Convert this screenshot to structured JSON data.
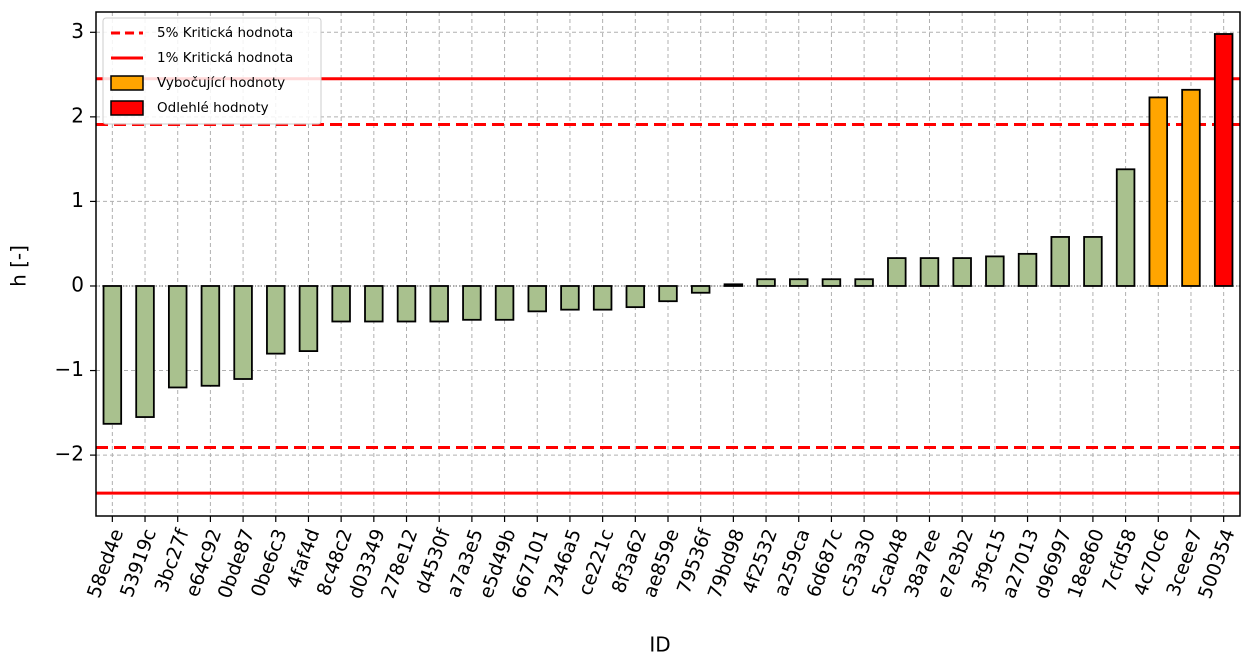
{
  "chart_data": {
    "type": "bar",
    "x_label": "ID",
    "y_label": "h [-]",
    "categories": [
      "58ed4e",
      "53919c",
      "3bc27f",
      "e64c92",
      "0bde87",
      "0be6c3",
      "4faf4d",
      "8c48c2",
      "d03349",
      "278e12",
      "d4530f",
      "a7a3e5",
      "e5d49b",
      "667101",
      "7346a5",
      "ce221c",
      "8f3a62",
      "ae859e",
      "79536f",
      "79bd98",
      "4f2532",
      "a259ca",
      "6d687c",
      "c53a30",
      "5cab48",
      "38a7ee",
      "e7e3b2",
      "3f9c15",
      "a27013",
      "d96997",
      "18e860",
      "7cfd58",
      "4c70c6",
      "3ceee7",
      "500354"
    ],
    "values": [
      -1.63,
      -1.55,
      -1.2,
      -1.18,
      -1.1,
      -0.8,
      -0.77,
      -0.42,
      -0.42,
      -0.42,
      -0.42,
      -0.4,
      -0.4,
      -0.3,
      -0.28,
      -0.28,
      -0.25,
      -0.18,
      -0.08,
      0.02,
      0.08,
      0.08,
      0.08,
      0.08,
      0.33,
      0.33,
      0.33,
      0.35,
      0.38,
      0.58,
      0.58,
      1.38,
      2.23,
      2.32,
      2.98
    ],
    "colors": [
      "#a9c18e",
      "#a9c18e",
      "#a9c18e",
      "#a9c18e",
      "#a9c18e",
      "#a9c18e",
      "#a9c18e",
      "#a9c18e",
      "#a9c18e",
      "#a9c18e",
      "#a9c18e",
      "#a9c18e",
      "#a9c18e",
      "#a9c18e",
      "#a9c18e",
      "#a9c18e",
      "#a9c18e",
      "#a9c18e",
      "#a9c18e",
      "#a9c18e",
      "#a9c18e",
      "#a9c18e",
      "#a9c18e",
      "#a9c18e",
      "#a9c18e",
      "#a9c18e",
      "#a9c18e",
      "#a9c18e",
      "#a9c18e",
      "#a9c18e",
      "#a9c18e",
      "#a9c18e",
      "#ffa500",
      "#ffa500",
      "#ff0000"
    ],
    "critical_lines": [
      {
        "name": "5% Kritická hodnota",
        "values": [
          1.91,
          -1.91
        ],
        "color": "#ff0000",
        "style": "dashed"
      },
      {
        "name": "1% Kritická hodnota",
        "values": [
          2.45,
          -2.45
        ],
        "color": "#ff0000",
        "style": "solid"
      }
    ],
    "legend_patches": [
      {
        "name": "Vybočující hodnoty",
        "color": "#ffa500"
      },
      {
        "name": "Odlehlé hodnoty",
        "color": "#ff0000"
      }
    ],
    "ylim": [
      -2.72,
      3.24
    ],
    "yticks": [
      {
        "value": -2,
        "label": "−2"
      },
      {
        "value": -1,
        "label": "−1"
      },
      0,
      1,
      2,
      3
    ],
    "grid": true,
    "legend_position": "upper left"
  }
}
